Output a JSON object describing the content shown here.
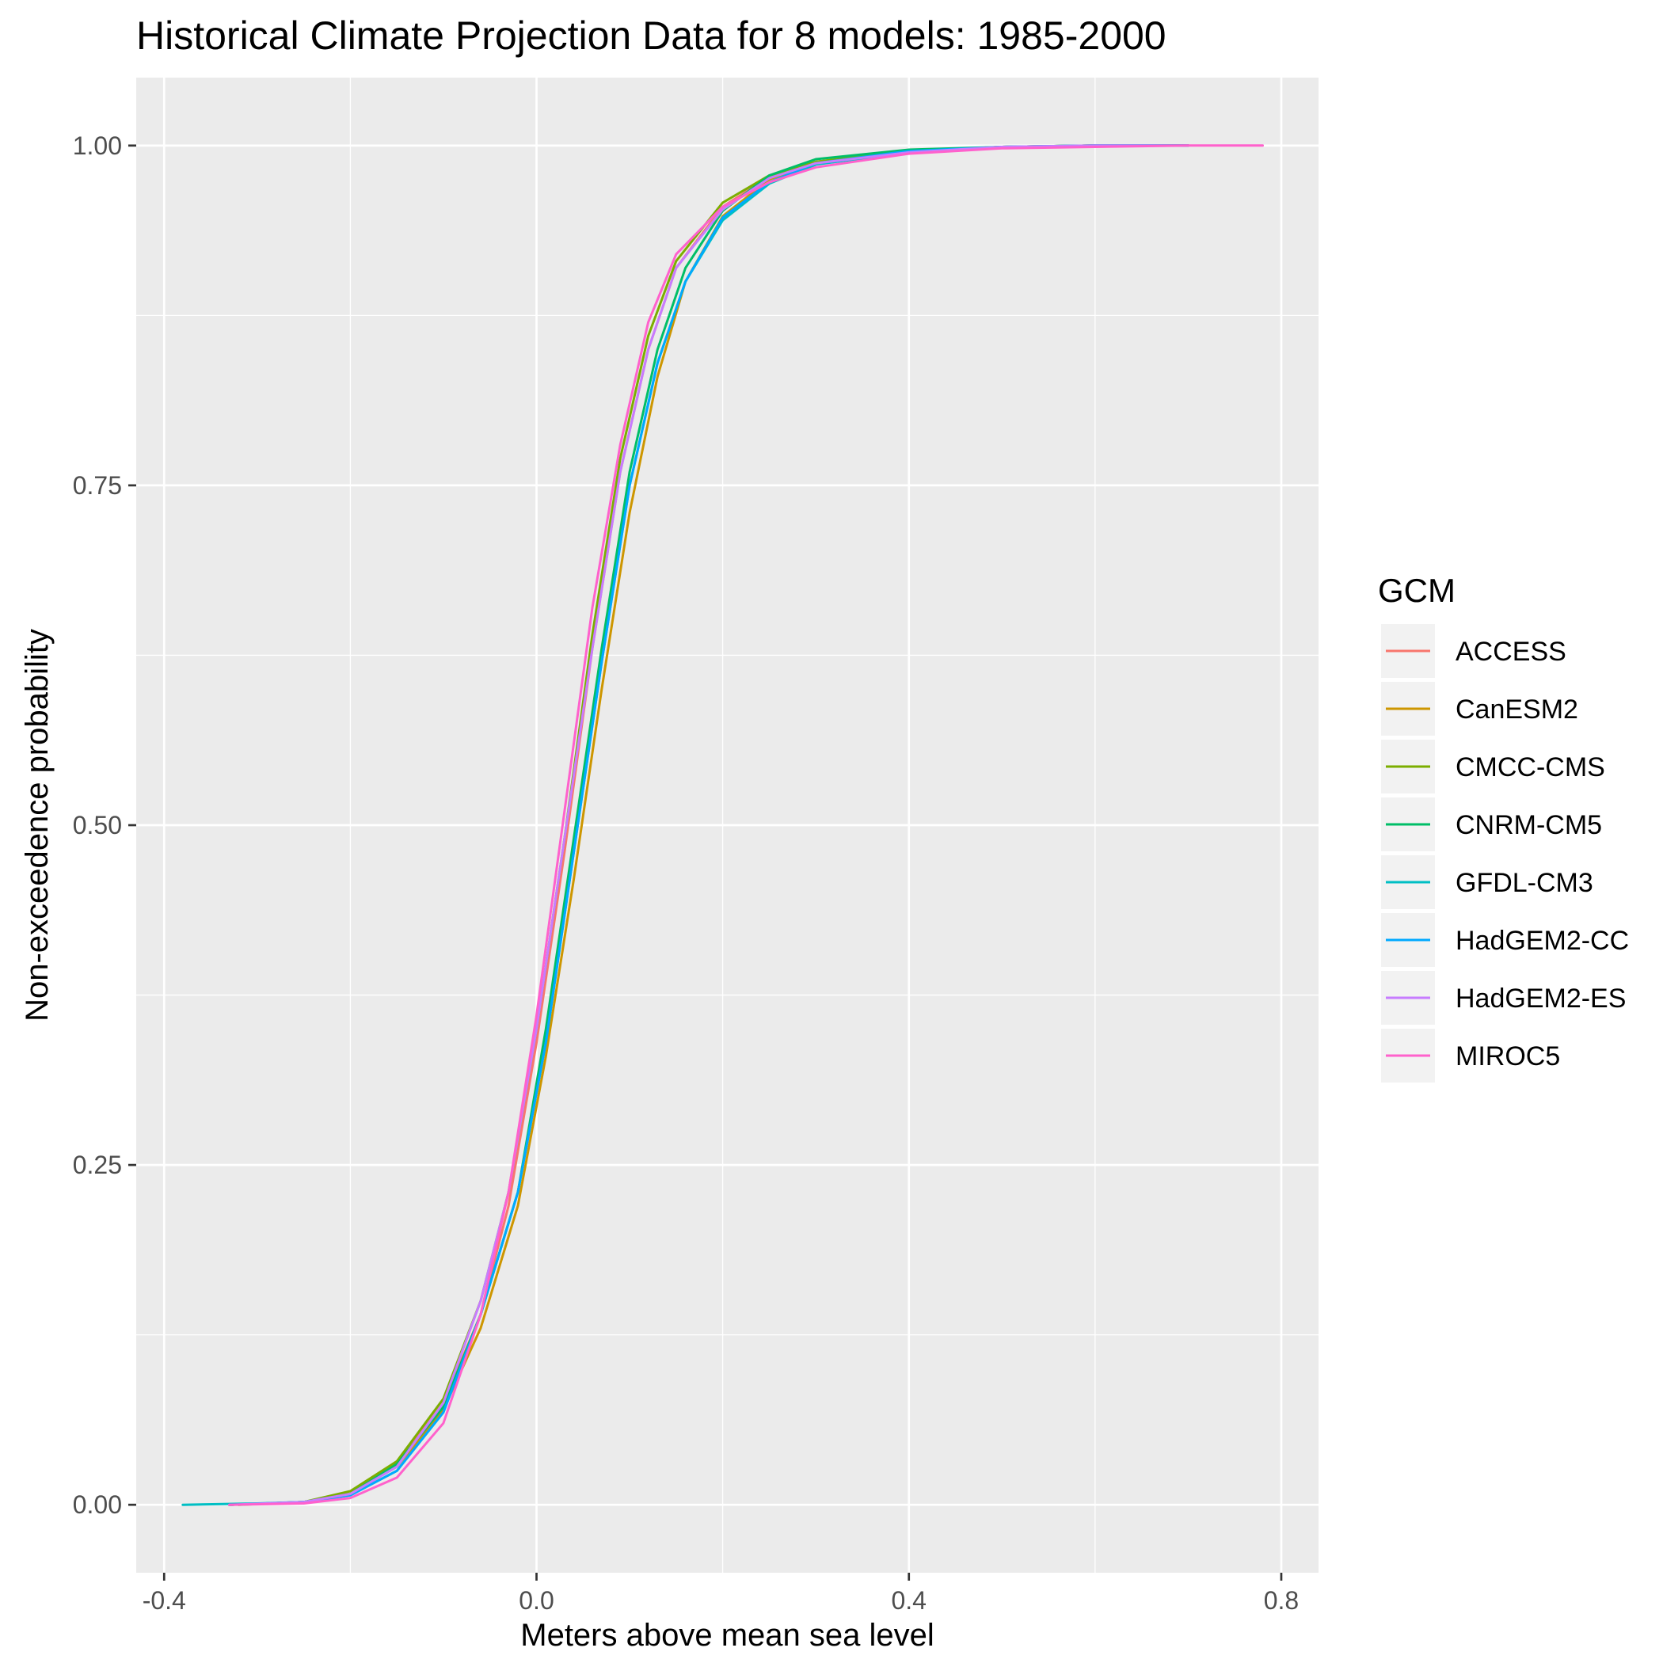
{
  "chart_data": {
    "type": "line",
    "title": "Historical Climate Projection Data for 8 models: 1985-2000",
    "xlabel": "Meters above mean sea level",
    "ylabel": "Non-exceedence probability",
    "xlim": [
      -0.43,
      0.84
    ],
    "ylim": [
      -0.05,
      1.05
    ],
    "x_ticks": [
      -0.4,
      0.0,
      0.4,
      0.8
    ],
    "x_tick_labels": [
      "-0.4",
      "0.0",
      "0.4",
      "0.8"
    ],
    "y_ticks": [
      0.0,
      0.25,
      0.5,
      0.75,
      1.0
    ],
    "y_tick_labels": [
      "0.00",
      "0.25",
      "0.50",
      "0.75",
      "1.00"
    ],
    "grid": true,
    "legend": {
      "title": "GCM",
      "position": "right"
    },
    "series": [
      {
        "name": "ACCESS",
        "color": "#F8766D",
        "points": [
          [
            -0.33,
            0
          ],
          [
            -0.25,
            0.002
          ],
          [
            -0.2,
            0.008
          ],
          [
            -0.15,
            0.03
          ],
          [
            -0.1,
            0.075
          ],
          [
            -0.06,
            0.14
          ],
          [
            -0.03,
            0.22
          ],
          [
            0.0,
            0.34
          ],
          [
            0.03,
            0.48
          ],
          [
            0.06,
            0.63
          ],
          [
            0.09,
            0.76
          ],
          [
            0.12,
            0.85
          ],
          [
            0.15,
            0.91
          ],
          [
            0.2,
            0.955
          ],
          [
            0.25,
            0.977
          ],
          [
            0.3,
            0.988
          ],
          [
            0.4,
            0.996
          ],
          [
            0.5,
            0.999
          ],
          [
            0.6,
            1.0
          ],
          [
            0.7,
            1.0
          ]
        ]
      },
      {
        "name": "CanESM2",
        "color": "#CD9600",
        "points": [
          [
            -0.33,
            0
          ],
          [
            -0.25,
            0.002
          ],
          [
            -0.2,
            0.008
          ],
          [
            -0.15,
            0.028
          ],
          [
            -0.1,
            0.07
          ],
          [
            -0.06,
            0.13
          ],
          [
            -0.02,
            0.22
          ],
          [
            0.01,
            0.33
          ],
          [
            0.04,
            0.46
          ],
          [
            0.07,
            0.6
          ],
          [
            0.1,
            0.73
          ],
          [
            0.13,
            0.83
          ],
          [
            0.16,
            0.9
          ],
          [
            0.2,
            0.948
          ],
          [
            0.25,
            0.975
          ],
          [
            0.3,
            0.988
          ],
          [
            0.4,
            0.996
          ],
          [
            0.5,
            0.999
          ],
          [
            0.6,
            1.0
          ],
          [
            0.7,
            1.0
          ]
        ]
      },
      {
        "name": "CMCC-CMS",
        "color": "#7CAE00",
        "points": [
          [
            -0.32,
            0
          ],
          [
            -0.25,
            0.002
          ],
          [
            -0.2,
            0.01
          ],
          [
            -0.15,
            0.032
          ],
          [
            -0.1,
            0.078
          ],
          [
            -0.06,
            0.15
          ],
          [
            -0.03,
            0.23
          ],
          [
            0.0,
            0.35
          ],
          [
            0.03,
            0.49
          ],
          [
            0.06,
            0.64
          ],
          [
            0.09,
            0.77
          ],
          [
            0.12,
            0.86
          ],
          [
            0.15,
            0.915
          ],
          [
            0.2,
            0.958
          ],
          [
            0.25,
            0.978
          ],
          [
            0.3,
            0.988
          ],
          [
            0.4,
            0.996
          ],
          [
            0.5,
            0.999
          ],
          [
            0.6,
            1.0
          ],
          [
            0.7,
            1.0
          ]
        ]
      },
      {
        "name": "CNRM-CM5",
        "color": "#00BE67",
        "points": [
          [
            -0.33,
            0
          ],
          [
            -0.25,
            0.002
          ],
          [
            -0.2,
            0.008
          ],
          [
            -0.15,
            0.03
          ],
          [
            -0.1,
            0.072
          ],
          [
            -0.06,
            0.14
          ],
          [
            -0.02,
            0.23
          ],
          [
            0.01,
            0.35
          ],
          [
            0.04,
            0.49
          ],
          [
            0.07,
            0.63
          ],
          [
            0.1,
            0.76
          ],
          [
            0.13,
            0.85
          ],
          [
            0.16,
            0.91
          ],
          [
            0.2,
            0.952
          ],
          [
            0.25,
            0.978
          ],
          [
            0.3,
            0.99
          ],
          [
            0.4,
            0.997
          ],
          [
            0.5,
            0.999
          ],
          [
            0.6,
            1.0
          ],
          [
            0.7,
            1.0
          ]
        ]
      },
      {
        "name": "GFDL-CM3",
        "color": "#00BFC4",
        "points": [
          [
            -0.38,
            0
          ],
          [
            -0.3,
            0.001
          ],
          [
            -0.25,
            0.002
          ],
          [
            -0.2,
            0.007
          ],
          [
            -0.15,
            0.025
          ],
          [
            -0.1,
            0.068
          ],
          [
            -0.06,
            0.14
          ],
          [
            -0.02,
            0.23
          ],
          [
            0.01,
            0.34
          ],
          [
            0.04,
            0.48
          ],
          [
            0.07,
            0.62
          ],
          [
            0.1,
            0.75
          ],
          [
            0.13,
            0.84
          ],
          [
            0.16,
            0.9
          ],
          [
            0.2,
            0.945
          ],
          [
            0.25,
            0.972
          ],
          [
            0.3,
            0.986
          ],
          [
            0.4,
            0.995
          ],
          [
            0.5,
            0.999
          ],
          [
            0.6,
            1.0
          ],
          [
            0.7,
            1.0
          ]
        ]
      },
      {
        "name": "HadGEM2-CC",
        "color": "#00A9FF",
        "points": [
          [
            -0.33,
            0
          ],
          [
            -0.25,
            0.002
          ],
          [
            -0.2,
            0.007
          ],
          [
            -0.15,
            0.025
          ],
          [
            -0.1,
            0.068
          ],
          [
            -0.06,
            0.14
          ],
          [
            -0.02,
            0.23
          ],
          [
            0.01,
            0.34
          ],
          [
            0.04,
            0.48
          ],
          [
            0.07,
            0.62
          ],
          [
            0.1,
            0.75
          ],
          [
            0.13,
            0.84
          ],
          [
            0.16,
            0.9
          ],
          [
            0.2,
            0.947
          ],
          [
            0.25,
            0.973
          ],
          [
            0.3,
            0.987
          ],
          [
            0.4,
            0.996
          ],
          [
            0.5,
            0.999
          ],
          [
            0.6,
            1.0
          ],
          [
            0.7,
            1.0
          ]
        ]
      },
      {
        "name": "HadGEM2-ES",
        "color": "#C77CFF",
        "points": [
          [
            -0.33,
            0
          ],
          [
            -0.25,
            0.002
          ],
          [
            -0.2,
            0.008
          ],
          [
            -0.15,
            0.028
          ],
          [
            -0.1,
            0.075
          ],
          [
            -0.06,
            0.15
          ],
          [
            -0.03,
            0.23
          ],
          [
            0.0,
            0.35
          ],
          [
            0.03,
            0.49
          ],
          [
            0.06,
            0.63
          ],
          [
            0.09,
            0.76
          ],
          [
            0.12,
            0.85
          ],
          [
            0.15,
            0.91
          ],
          [
            0.2,
            0.953
          ],
          [
            0.25,
            0.976
          ],
          [
            0.3,
            0.987
          ],
          [
            0.4,
            0.995
          ],
          [
            0.5,
            0.999
          ],
          [
            0.6,
            1.0
          ],
          [
            0.7,
            1.0
          ]
        ]
      },
      {
        "name": "MIROC5",
        "color": "#FF61CC",
        "points": [
          [
            -0.33,
            0
          ],
          [
            -0.25,
            0.001
          ],
          [
            -0.2,
            0.005
          ],
          [
            -0.15,
            0.02
          ],
          [
            -0.1,
            0.06
          ],
          [
            -0.06,
            0.14
          ],
          [
            -0.03,
            0.23
          ],
          [
            0.0,
            0.36
          ],
          [
            0.03,
            0.51
          ],
          [
            0.06,
            0.66
          ],
          [
            0.09,
            0.78
          ],
          [
            0.12,
            0.87
          ],
          [
            0.15,
            0.92
          ],
          [
            0.2,
            0.955
          ],
          [
            0.25,
            0.973
          ],
          [
            0.3,
            0.984
          ],
          [
            0.4,
            0.994
          ],
          [
            0.5,
            0.998
          ],
          [
            0.6,
            0.999
          ],
          [
            0.7,
            1.0
          ],
          [
            0.78,
            1.0
          ]
        ]
      }
    ]
  }
}
